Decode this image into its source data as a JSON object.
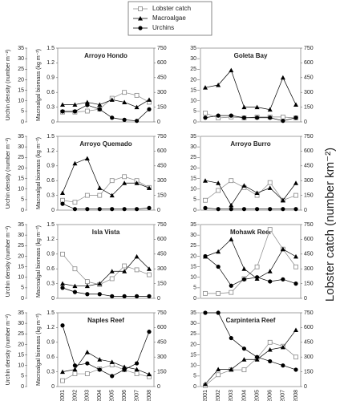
{
  "chart_data": [
    {
      "type": "line",
      "title": "Arroyo Hondo",
      "ylabel": "Urchin density (number m⁻²)",
      "y2label": "Macroalgal biomass (kg m⁻²)",
      "categories": [
        "2001",
        "2002",
        "2003",
        "2004",
        "2005",
        "2006",
        "2007",
        "2008"
      ],
      "series": [
        {
          "name": "Lobster catch",
          "marker": "square-open",
          "color": "#888888",
          "axis": "y3",
          "values": [
            100,
            100,
            110,
            130,
            240,
            300,
            270,
            200
          ]
        },
        {
          "name": "Macroalgae",
          "marker": "triangle",
          "color": "#000000",
          "axis": "y2",
          "values": [
            0.35,
            0.35,
            0.4,
            0.35,
            0.45,
            0.4,
            0.3,
            0.45
          ]
        },
        {
          "name": "Urchins",
          "marker": "circle",
          "color": "#000000",
          "axis": "y",
          "values": [
            5,
            5,
            8,
            6,
            2,
            1,
            0.5,
            6
          ]
        }
      ],
      "ylim": [
        0,
        35
      ],
      "yticks": [
        0,
        5,
        10,
        15,
        20,
        25,
        30,
        35
      ],
      "y2lim": [
        0,
        1.5
      ],
      "y2ticks": [
        0,
        0.3,
        0.6,
        0.9,
        1.2,
        1.5
      ],
      "y3lim": [
        0,
        750
      ],
      "y3ticks": [
        0,
        150,
        300,
        450,
        600,
        750
      ]
    },
    {
      "type": "line",
      "title": "Goleta Bay",
      "y3label": "Lobster catch (number km⁻²)",
      "categories": [
        "2001",
        "2002",
        "2003",
        "2004",
        "2005",
        "2006",
        "2007",
        "2008"
      ],
      "series": [
        {
          "name": "Lobster catch",
          "marker": "square-open",
          "color": "#888888",
          "axis": "y3",
          "values": [
            90,
            40,
            50,
            40,
            50,
            50,
            50,
            40
          ]
        },
        {
          "name": "Macroalgae",
          "marker": "triangle",
          "color": "#000000",
          "axis": "y2",
          "values": [
            0.7,
            0.75,
            1.05,
            0.3,
            0.3,
            0.25,
            0.9,
            0.35
          ]
        },
        {
          "name": "Urchins",
          "marker": "circle",
          "color": "#000000",
          "axis": "y",
          "values": [
            2,
            3,
            3,
            2,
            2,
            2,
            0.5,
            2
          ]
        }
      ],
      "ylim": [
        0,
        35
      ],
      "yticks": [
        0,
        5,
        10,
        15,
        20,
        25,
        30,
        35
      ],
      "y2lim": [
        0,
        1.5
      ],
      "y3lim": [
        0,
        750
      ],
      "y3ticks": [
        0,
        150,
        300,
        450,
        600,
        750
      ]
    },
    {
      "type": "line",
      "title": "Arroyo Quemado",
      "ylabel": "Urchin density (number m⁻²)",
      "y2label": "Macroalgal biomass (kg m⁻²)",
      "categories": [
        "2001",
        "2002",
        "2003",
        "2004",
        "2005",
        "2006",
        "2007",
        "2008"
      ],
      "series": [
        {
          "name": "Lobster catch",
          "marker": "square-open",
          "color": "#888888",
          "axis": "y3",
          "values": [
            100,
            80,
            150,
            150,
            300,
            340,
            300,
            230
          ]
        },
        {
          "name": "Macroalgae",
          "marker": "triangle",
          "color": "#000000",
          "axis": "y2",
          "values": [
            0.35,
            0.95,
            1.05,
            0.45,
            0.3,
            0.55,
            0.55,
            0.45
          ]
        },
        {
          "name": "Urchins",
          "marker": "circle",
          "color": "#000000",
          "axis": "y",
          "values": [
            3,
            0.5,
            0.5,
            0.5,
            0.5,
            0.5,
            0.5,
            1
          ]
        }
      ],
      "ylim": [
        0,
        35
      ],
      "yticks": [
        0,
        5,
        10,
        15,
        20,
        25,
        30,
        35
      ],
      "y2lim": [
        0,
        1.5
      ],
      "y2ticks": [
        0,
        0.3,
        0.6,
        0.9,
        1.2,
        1.5
      ],
      "y3lim": [
        0,
        750
      ],
      "y3ticks": [
        0,
        150,
        300,
        450,
        600,
        750
      ]
    },
    {
      "type": "line",
      "title": "Arroyo Burro",
      "categories": [
        "2001",
        "2002",
        "2003",
        "2004",
        "2005",
        "2006",
        "2007",
        "2008"
      ],
      "series": [
        {
          "name": "Lobster catch",
          "marker": "square-open",
          "color": "#888888",
          "axis": "y3",
          "values": [
            100,
            200,
            300,
            230,
            150,
            280,
            100,
            150
          ]
        },
        {
          "name": "Macroalgae",
          "marker": "triangle",
          "color": "#000000",
          "axis": "y2",
          "values": [
            0.6,
            0.55,
            0.1,
            0.5,
            0.35,
            0.45,
            0.2,
            0.55
          ]
        },
        {
          "name": "Urchins",
          "marker": "circle",
          "color": "#000000",
          "axis": "y",
          "values": [
            1,
            0.5,
            0.5,
            0.5,
            0.5,
            0.5,
            0.5,
            0.5
          ]
        }
      ],
      "ylim": [
        0,
        35
      ],
      "yticks": [
        0,
        5,
        10,
        15,
        20,
        25,
        30,
        35
      ],
      "y2lim": [
        0,
        1.5
      ],
      "y3lim": [
        0,
        750
      ],
      "y3ticks": [
        0,
        150,
        300,
        450,
        600,
        750
      ]
    },
    {
      "type": "line",
      "title": "Isla Vista",
      "ylabel": "Urchin density (number m⁻²)",
      "y2label": "Macroalgal biomass (kg m⁻²)",
      "categories": [
        "2001",
        "2002",
        "2003",
        "2004",
        "2005",
        "2006",
        "2007",
        "2008"
      ],
      "series": [
        {
          "name": "Lobster catch",
          "marker": "square-open",
          "color": "#888888",
          "axis": "y3",
          "values": [
            450,
            300,
            170,
            140,
            200,
            330,
            290,
            240
          ]
        },
        {
          "name": "Macroalgae",
          "marker": "triangle",
          "color": "#000000",
          "axis": "y2",
          "values": [
            0.3,
            0.25,
            0.25,
            0.3,
            0.55,
            0.55,
            0.85,
            0.6
          ]
        },
        {
          "name": "Urchins",
          "marker": "circle",
          "color": "#000000",
          "axis": "y",
          "values": [
            5,
            3,
            2,
            2,
            1,
            1,
            1,
            1
          ]
        }
      ],
      "ylim": [
        0,
        35
      ],
      "yticks": [
        0,
        5,
        10,
        15,
        20,
        25,
        30,
        35
      ],
      "y2lim": [
        0,
        1.5
      ],
      "y2ticks": [
        0,
        0.3,
        0.6,
        0.9,
        1.2,
        1.5
      ],
      "y3lim": [
        0,
        750
      ],
      "y3ticks": [
        0,
        150,
        300,
        450,
        600,
        750
      ]
    },
    {
      "type": "line",
      "title": "Mohawk Reef",
      "categories": [
        "2001",
        "2002",
        "2003",
        "2004",
        "2005",
        "2006",
        "2007",
        "2008"
      ],
      "series": [
        {
          "name": "Lobster catch",
          "marker": "square-open",
          "color": "#888888",
          "axis": "y3",
          "values": [
            50,
            50,
            60,
            200,
            320,
            700,
            500,
            320
          ]
        },
        {
          "name": "Macroalgae",
          "marker": "triangle",
          "color": "#000000",
          "axis": "y2",
          "values": [
            0.85,
            0.95,
            1.2,
            0.6,
            0.4,
            0.55,
            1,
            0.85
          ]
        },
        {
          "name": "Urchins",
          "marker": "circle",
          "color": "#000000",
          "axis": "y",
          "values": [
            20,
            15,
            6,
            9,
            10,
            8,
            9,
            7
          ]
        }
      ],
      "ylim": [
        0,
        35
      ],
      "yticks": [
        0,
        5,
        10,
        15,
        20,
        25,
        30,
        35
      ],
      "y2lim": [
        0,
        1.5
      ],
      "y3lim": [
        0,
        750
      ],
      "y3ticks": [
        0,
        150,
        300,
        450,
        600,
        750
      ]
    },
    {
      "type": "line",
      "title": "Naples Reef",
      "ylabel": "Urchin density (number m⁻²)",
      "y2label": "Macroalgal biomass (kg m⁻²)",
      "categories": [
        "2001",
        "2002",
        "2003",
        "2004",
        "2005",
        "2006",
        "2007",
        "2008"
      ],
      "series": [
        {
          "name": "Lobster catch",
          "marker": "square-open",
          "color": "#888888",
          "axis": "y3",
          "values": [
            60,
            130,
            130,
            180,
            220,
            170,
            130,
            100
          ]
        },
        {
          "name": "Macroalgae",
          "marker": "triangle",
          "color": "#000000",
          "axis": "y2",
          "values": [
            0.3,
            0.35,
            0.7,
            0.55,
            0.5,
            0.4,
            0.35,
            0.25
          ]
        },
        {
          "name": "Urchins",
          "marker": "circle",
          "color": "#000000",
          "axis": "y",
          "values": [
            29,
            10,
            11,
            8,
            5,
            8,
            11,
            26
          ]
        }
      ],
      "ylim": [
        0,
        35
      ],
      "yticks": [
        0,
        5,
        10,
        15,
        20,
        25,
        30,
        35
      ],
      "y2lim": [
        0,
        1.5
      ],
      "y2ticks": [
        0,
        0.3,
        0.6,
        0.9,
        1.2,
        1.5
      ],
      "y3lim": [
        0,
        750
      ],
      "y3ticks": [
        0,
        150,
        300,
        450,
        600,
        750
      ]
    },
    {
      "type": "line",
      "title": "Carpinteria Reef",
      "categories": [
        "2001",
        "2002",
        "2003",
        "2004",
        "2005",
        "2006",
        "2007",
        "2008"
      ],
      "series": [
        {
          "name": "Lobster catch",
          "marker": "square-open",
          "color": "#888888",
          "axis": "y3",
          "values": [
            10,
            120,
            170,
            170,
            290,
            450,
            410,
            300
          ]
        },
        {
          "name": "Macroalgae",
          "marker": "triangle",
          "color": "#000000",
          "axis": "y2",
          "values": [
            0.05,
            0.35,
            0.35,
            0.55,
            0.55,
            0.75,
            0.8,
            1.15
          ]
        },
        {
          "name": "Urchins",
          "marker": "circle",
          "color": "#000000",
          "axis": "y",
          "values": [
            35,
            35,
            23,
            18,
            14,
            12,
            10,
            8
          ]
        }
      ],
      "ylim": [
        0,
        35
      ],
      "yticks": [
        0,
        5,
        10,
        15,
        20,
        25,
        30,
        35
      ],
      "y2lim": [
        0,
        1.5
      ],
      "y3lim": [
        0,
        750
      ],
      "y3ticks": [
        0,
        150,
        300,
        450,
        600,
        750
      ]
    }
  ]
}
